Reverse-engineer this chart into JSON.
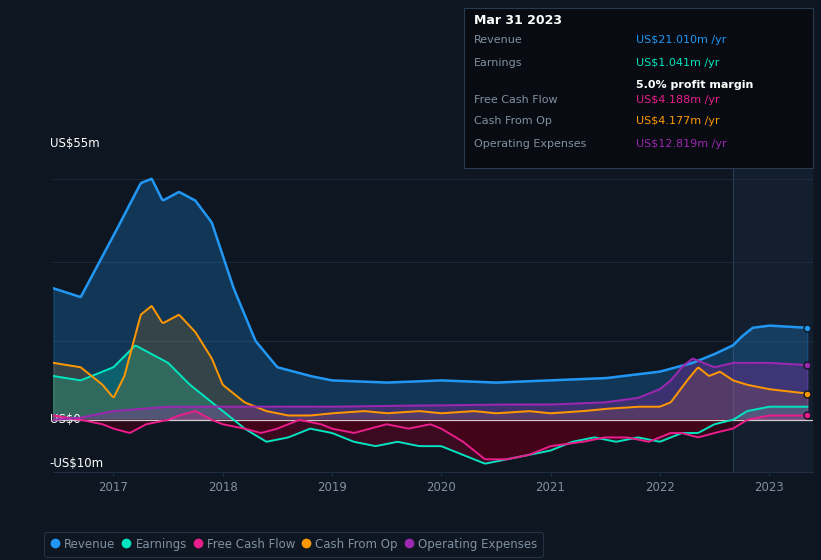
{
  "bg_color": "#0e1621",
  "plot_bg_color": "#0e1621",
  "plot_bg_right": "#131e2e",
  "grid_color": "#1e2d40",
  "text_color": "#8090a0",
  "white_color": "#ffffff",
  "ylim": [
    -12,
    60
  ],
  "split_x": 2022.67,
  "xlim_left": 2016.45,
  "xlim_right": 2023.4,
  "xlabel_years": [
    2017,
    2018,
    2019,
    2020,
    2021,
    2022,
    2023
  ],
  "colors": {
    "revenue": "#2196f3",
    "earnings": "#00e5c0",
    "free_cash_flow": "#e91e8c",
    "cash_from_op": "#ff9800",
    "operating_expenses": "#9c27b0"
  },
  "legend_labels": [
    "Revenue",
    "Earnings",
    "Free Cash Flow",
    "Cash From Op",
    "Operating Expenses"
  ],
  "tooltip": {
    "date": "Mar 31 2023",
    "revenue_val": "US$21.010m",
    "earnings_val": "US$1.041m",
    "profit_margin": "5.0%",
    "fcf_val": "US$4.188m",
    "cashfromop_val": "US$4.177m",
    "opex_val": "US$12.819m"
  }
}
